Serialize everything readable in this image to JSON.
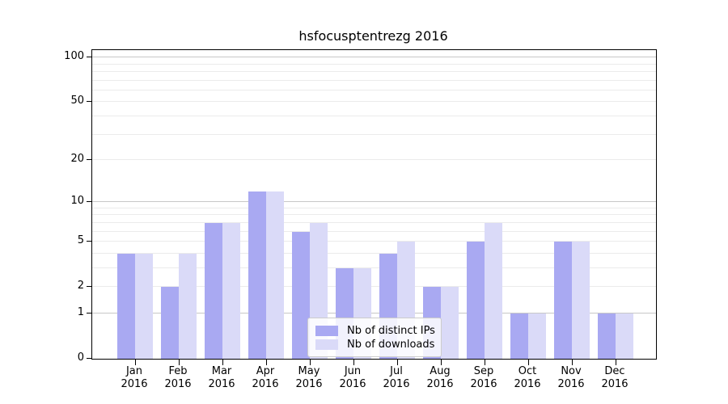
{
  "chart_data": {
    "type": "bar",
    "title": "hsfocusptentrezg 2016",
    "xlabel": "",
    "ylabel": "",
    "x_year": "2016",
    "categories": [
      "Jan",
      "Feb",
      "Mar",
      "Apr",
      "May",
      "Jun",
      "Jul",
      "Aug",
      "Sep",
      "Oct",
      "Nov",
      "Dec"
    ],
    "series": [
      {
        "name": "Nb of distinct IPs",
        "color": "#a9a9f2",
        "values": [
          4,
          2,
          7,
          12,
          6,
          3,
          4,
          2,
          5,
          1,
          5,
          1
        ]
      },
      {
        "name": "Nb of downloads",
        "color": "#dadaf8",
        "values": [
          4,
          4,
          7,
          12,
          7,
          3,
          5,
          2,
          7,
          1,
          5,
          1
        ]
      }
    ],
    "yscale": "log10(1+v)",
    "ylim": [
      0,
      112
    ],
    "yticks": [
      0,
      1,
      2,
      5,
      10,
      20,
      50,
      100
    ],
    "gridlines": {
      "decade": [
        1,
        10,
        100
      ],
      "minor": [
        2,
        3,
        4,
        5,
        6,
        7,
        8,
        9,
        20,
        30,
        40,
        50,
        60,
        70,
        80,
        90
      ]
    },
    "legend": {
      "position": "lower center inside"
    },
    "colors": {
      "background": "#ffffff",
      "spine": "#000000",
      "grid_decade": "#c8c8c8",
      "grid_minor": "#ebebeb",
      "text": "#000000"
    }
  }
}
